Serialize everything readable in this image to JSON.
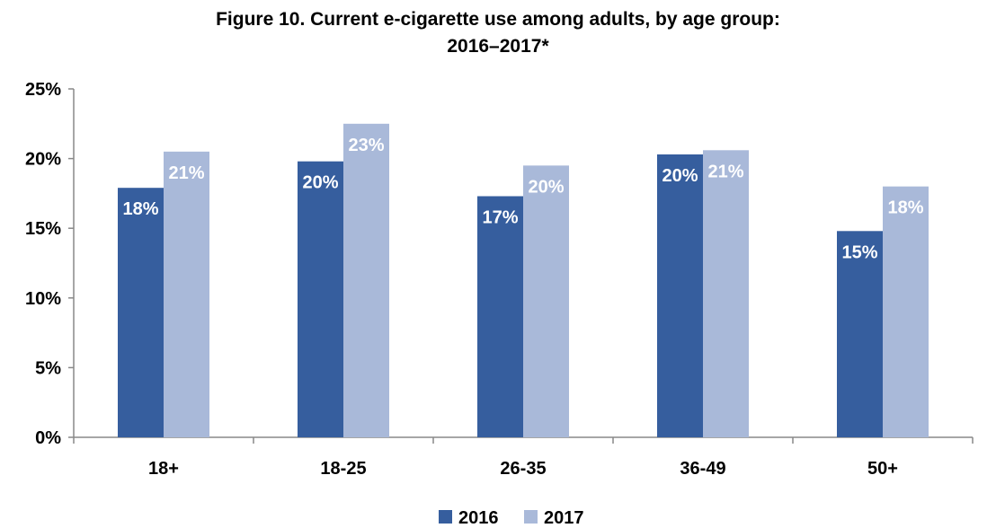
{
  "chart_data": {
    "type": "bar",
    "title_line1": "Figure 10. Current e-cigarette use among adults, by age group:",
    "title_line2": "2016–2017*",
    "categories": [
      "18+",
      "18-25",
      "26-35",
      "36-49",
      "50+"
    ],
    "series": [
      {
        "name": "2016",
        "values": [
          17.9,
          19.8,
          17.3,
          20.3,
          14.8
        ],
        "labels": [
          "18%",
          "20%",
          "17%",
          "20%",
          "15%"
        ]
      },
      {
        "name": "2017",
        "values": [
          20.5,
          22.5,
          19.5,
          20.6,
          18.0
        ],
        "labels": [
          "21%",
          "23%",
          "20%",
          "21%",
          "18%"
        ]
      }
    ],
    "y_ticks": [
      "0%",
      "5%",
      "10%",
      "15%",
      "20%",
      "25%"
    ],
    "ylim": [
      0,
      25
    ],
    "colors": {
      "2016": "#365E9E",
      "2017": "#A9B9D9"
    },
    "grid": false,
    "legend_position": "bottom"
  }
}
